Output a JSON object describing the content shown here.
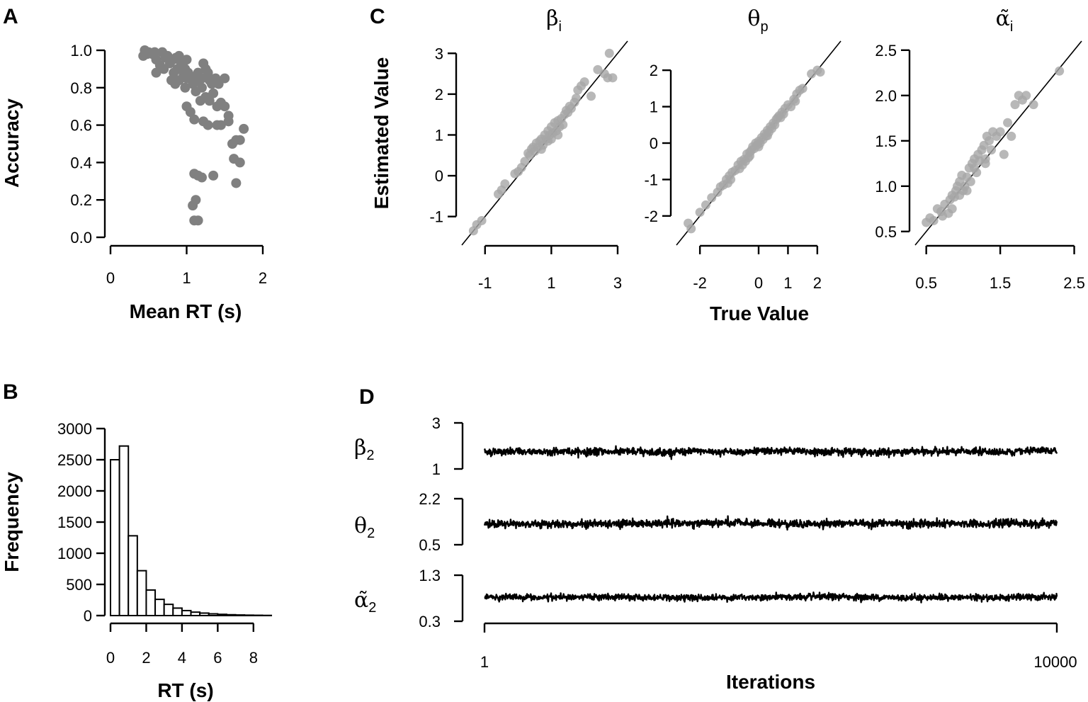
{
  "chart_data": [
    {
      "id": "A",
      "type": "scatter",
      "panel_label": "A",
      "xlabel": "Mean RT (s)",
      "ylabel": "Accuracy",
      "xlim": [
        0,
        2
      ],
      "ylim": [
        0,
        1
      ],
      "xticks": [
        "0",
        "1",
        "2"
      ],
      "yticks": [
        "0.0",
        "0.2",
        "0.4",
        "0.6",
        "0.8",
        "1.0"
      ],
      "point_color": "#808080",
      "points": [
        [
          0.45,
          1.0
        ],
        [
          0.48,
          0.98
        ],
        [
          0.5,
          0.99
        ],
        [
          0.43,
          0.97
        ],
        [
          0.55,
          0.98
        ],
        [
          0.6,
          0.95
        ],
        [
          0.68,
          0.99
        ],
        [
          0.72,
          0.96
        ],
        [
          0.75,
          0.97
        ],
        [
          0.78,
          0.93
        ],
        [
          0.82,
          0.95
        ],
        [
          0.86,
          0.96
        ],
        [
          0.9,
          0.97
        ],
        [
          0.92,
          0.94
        ],
        [
          0.95,
          0.92
        ],
        [
          0.98,
          0.9
        ],
        [
          0.96,
          0.87
        ],
        [
          0.88,
          0.9
        ],
        [
          0.83,
          0.88
        ],
        [
          0.8,
          0.84
        ],
        [
          0.85,
          0.82
        ],
        [
          0.9,
          0.84
        ],
        [
          1.0,
          0.85
        ],
        [
          1.02,
          0.88
        ],
        [
          1.05,
          0.85
        ],
        [
          1.08,
          0.82
        ],
        [
          1.1,
          0.83
        ],
        [
          1.12,
          0.86
        ],
        [
          1.15,
          0.88
        ],
        [
          1.17,
          0.84
        ],
        [
          1.2,
          0.85
        ],
        [
          1.22,
          0.93
        ],
        [
          1.25,
          0.9
        ],
        [
          1.28,
          0.88
        ],
        [
          1.3,
          0.84
        ],
        [
          1.33,
          0.82
        ],
        [
          1.38,
          0.85
        ],
        [
          1.42,
          0.82
        ],
        [
          1.5,
          0.85
        ],
        [
          1.2,
          0.8
        ],
        [
          1.25,
          0.75
        ],
        [
          1.3,
          0.73
        ],
        [
          1.35,
          0.77
        ],
        [
          1.4,
          0.7
        ],
        [
          1.45,
          0.72
        ],
        [
          1.5,
          0.7
        ],
        [
          1.55,
          0.65
        ],
        [
          1.18,
          0.73
        ],
        [
          1.12,
          0.78
        ],
        [
          0.98,
          0.8
        ],
        [
          1.0,
          0.7
        ],
        [
          1.05,
          0.67
        ],
        [
          1.1,
          0.63
        ],
        [
          1.22,
          0.62
        ],
        [
          1.28,
          0.6
        ],
        [
          1.4,
          0.6
        ],
        [
          1.45,
          0.6
        ],
        [
          1.55,
          0.62
        ],
        [
          1.6,
          0.5
        ],
        [
          1.65,
          0.52
        ],
        [
          1.7,
          0.52
        ],
        [
          1.75,
          0.58
        ],
        [
          1.62,
          0.42
        ],
        [
          1.7,
          0.4
        ],
        [
          1.65,
          0.29
        ],
        [
          1.1,
          0.34
        ],
        [
          1.15,
          0.33
        ],
        [
          1.2,
          0.32
        ],
        [
          1.35,
          0.33
        ],
        [
          1.08,
          0.17
        ],
        [
          1.12,
          0.2
        ],
        [
          1.1,
          0.09
        ],
        [
          1.15,
          0.09
        ],
        [
          0.6,
          0.88
        ],
        [
          0.65,
          0.92
        ],
        [
          0.7,
          0.9
        ],
        [
          0.58,
          0.99
        ],
        [
          1.0,
          0.95
        ]
      ]
    },
    {
      "id": "B",
      "type": "bar",
      "panel_label": "B",
      "xlabel": "RT (s)",
      "ylabel": "Frequency",
      "xlim": [
        0,
        8.8
      ],
      "ylim": [
        0,
        3000
      ],
      "xticks": [
        "0",
        "2",
        "4",
        "6",
        "8"
      ],
      "yticks": [
        "0",
        "500",
        "1000",
        "1500",
        "2000",
        "2500",
        "3000"
      ],
      "bin_width": 0.5,
      "bin_starts": [
        0,
        0.5,
        1,
        1.5,
        2,
        2.5,
        3,
        3.5,
        4,
        4.5,
        5,
        5.5,
        6,
        6.5,
        7,
        7.5,
        8,
        8.5
      ],
      "values": [
        2500,
        2720,
        1280,
        720,
        410,
        260,
        180,
        120,
        80,
        55,
        40,
        28,
        20,
        14,
        10,
        7,
        5,
        3
      ]
    },
    {
      "id": "C1",
      "type": "scatter",
      "panel_label": "C",
      "title": "β",
      "title_sub": "i",
      "ylabel": "Estimated Value",
      "xlim": [
        -1.7,
        3.3
      ],
      "ylim": [
        -1.7,
        3.3
      ],
      "xticks": [
        "-1",
        "1",
        "3"
      ],
      "yticks": [
        "-1",
        "0",
        "1",
        "2",
        "3"
      ],
      "identity_line": true,
      "point_color": "#a6a6a6",
      "points": [
        [
          -1.35,
          -1.35
        ],
        [
          -1.25,
          -1.2
        ],
        [
          -1.1,
          -1.1
        ],
        [
          -0.6,
          -0.45
        ],
        [
          -0.5,
          -0.35
        ],
        [
          -0.4,
          -0.2
        ],
        [
          -0.1,
          0.05
        ],
        [
          0.0,
          0.1
        ],
        [
          0.1,
          0.2
        ],
        [
          0.2,
          0.35
        ],
        [
          0.3,
          0.55
        ],
        [
          0.4,
          0.65
        ],
        [
          0.45,
          0.7
        ],
        [
          0.5,
          0.6
        ],
        [
          0.55,
          0.8
        ],
        [
          0.6,
          0.7
        ],
        [
          0.65,
          0.85
        ],
        [
          0.7,
          0.9
        ],
        [
          0.75,
          0.75
        ],
        [
          0.8,
          1.0
        ],
        [
          0.85,
          0.9
        ],
        [
          0.9,
          1.1
        ],
        [
          0.95,
          1.0
        ],
        [
          1.0,
          1.2
        ],
        [
          1.05,
          1.05
        ],
        [
          1.1,
          1.3
        ],
        [
          1.15,
          1.1
        ],
        [
          1.2,
          1.35
        ],
        [
          1.25,
          1.2
        ],
        [
          1.3,
          1.4
        ],
        [
          1.35,
          1.25
        ],
        [
          1.4,
          1.5
        ],
        [
          1.45,
          1.6
        ],
        [
          1.5,
          1.55
        ],
        [
          1.55,
          1.7
        ],
        [
          1.6,
          1.65
        ],
        [
          1.7,
          1.8
        ],
        [
          1.75,
          1.9
        ],
        [
          1.8,
          2.1
        ],
        [
          1.9,
          2.2
        ],
        [
          2.0,
          2.3
        ],
        [
          2.2,
          1.95
        ],
        [
          2.4,
          2.6
        ],
        [
          2.6,
          2.5
        ],
        [
          2.7,
          2.4
        ],
        [
          2.75,
          3.0
        ],
        [
          2.85,
          2.4
        ],
        [
          0.35,
          0.5
        ],
        [
          0.9,
          0.85
        ],
        [
          1.2,
          1.0
        ],
        [
          0.7,
          0.65
        ],
        [
          1.0,
          0.9
        ]
      ]
    },
    {
      "id": "C2",
      "type": "scatter",
      "title": "θ",
      "title_sub": "p",
      "xlabel": "True Value",
      "xlim": [
        -2.8,
        2.8
      ],
      "ylim": [
        -2.8,
        2.8
      ],
      "xticks": [
        "-2",
        "0",
        "1",
        "2"
      ],
      "yticks": [
        "-2",
        "-1",
        "0",
        "1",
        "2"
      ],
      "identity_line": true,
      "point_color": "#a6a6a6",
      "points": [
        [
          -2.4,
          -2.2
        ],
        [
          -2.3,
          -2.35
        ],
        [
          -2.0,
          -1.9
        ],
        [
          -1.8,
          -1.7
        ],
        [
          -1.6,
          -1.5
        ],
        [
          -1.4,
          -1.35
        ],
        [
          -1.3,
          -1.2
        ],
        [
          -1.2,
          -1.15
        ],
        [
          -1.1,
          -1.0
        ],
        [
          -1.0,
          -0.9
        ],
        [
          -0.95,
          -1.0
        ],
        [
          -0.9,
          -0.8
        ],
        [
          -0.8,
          -0.75
        ],
        [
          -0.7,
          -0.6
        ],
        [
          -0.65,
          -0.7
        ],
        [
          -0.6,
          -0.5
        ],
        [
          -0.5,
          -0.45
        ],
        [
          -0.45,
          -0.5
        ],
        [
          -0.4,
          -0.3
        ],
        [
          -0.35,
          -0.4
        ],
        [
          -0.3,
          -0.25
        ],
        [
          -0.25,
          -0.2
        ],
        [
          -0.2,
          -0.1
        ],
        [
          -0.15,
          -0.15
        ],
        [
          -0.1,
          0.0
        ],
        [
          -0.05,
          -0.05
        ],
        [
          0.0,
          0.05
        ],
        [
          0.05,
          0.0
        ],
        [
          0.1,
          0.15
        ],
        [
          0.15,
          0.1
        ],
        [
          0.2,
          0.25
        ],
        [
          0.25,
          0.2
        ],
        [
          0.3,
          0.35
        ],
        [
          0.35,
          0.3
        ],
        [
          0.4,
          0.45
        ],
        [
          0.45,
          0.4
        ],
        [
          0.5,
          0.55
        ],
        [
          0.55,
          0.5
        ],
        [
          0.6,
          0.65
        ],
        [
          0.65,
          0.7
        ],
        [
          0.7,
          0.75
        ],
        [
          0.8,
          0.85
        ],
        [
          0.85,
          0.8
        ],
        [
          0.9,
          0.95
        ],
        [
          1.0,
          1.05
        ],
        [
          1.1,
          1.0
        ],
        [
          1.2,
          1.2
        ],
        [
          1.3,
          1.35
        ],
        [
          1.4,
          1.45
        ],
        [
          1.5,
          1.5
        ],
        [
          1.8,
          1.9
        ],
        [
          2.0,
          2.0
        ],
        [
          2.1,
          1.95
        ],
        [
          -0.55,
          -0.6
        ],
        [
          0.75,
          0.7
        ],
        [
          1.25,
          1.15
        ],
        [
          -1.05,
          -1.1
        ],
        [
          0.0,
          -0.1
        ],
        [
          0.3,
          0.2
        ],
        [
          -0.3,
          -0.35
        ]
      ]
    },
    {
      "id": "C3",
      "type": "scatter",
      "title": "α̃",
      "title_sub": "i",
      "xlim": [
        0.35,
        2.6
      ],
      "ylim": [
        0.35,
        2.6
      ],
      "xticks": [
        "0.5",
        "1.5",
        "2.5"
      ],
      "yticks": [
        "0.5",
        "1.0",
        "1.5",
        "2.0",
        "2.5"
      ],
      "identity_line": true,
      "point_color": "#a6a6a6",
      "points": [
        [
          0.5,
          0.6
        ],
        [
          0.55,
          0.65
        ],
        [
          0.6,
          0.62
        ],
        [
          0.65,
          0.75
        ],
        [
          0.7,
          0.72
        ],
        [
          0.75,
          0.8
        ],
        [
          0.8,
          0.7
        ],
        [
          0.82,
          0.85
        ],
        [
          0.85,
          0.9
        ],
        [
          0.88,
          0.88
        ],
        [
          0.9,
          0.95
        ],
        [
          0.92,
          1.0
        ],
        [
          0.95,
          1.05
        ],
        [
          0.98,
          1.12
        ],
        [
          1.0,
          0.95
        ],
        [
          1.02,
          1.0
        ],
        [
          1.05,
          1.1
        ],
        [
          1.08,
          1.2
        ],
        [
          1.1,
          1.05
        ],
        [
          1.12,
          1.25
        ],
        [
          1.15,
          1.3
        ],
        [
          1.18,
          1.15
        ],
        [
          1.2,
          1.35
        ],
        [
          1.22,
          1.28
        ],
        [
          1.25,
          1.4
        ],
        [
          1.28,
          1.45
        ],
        [
          1.3,
          1.3
        ],
        [
          1.32,
          1.55
        ],
        [
          1.35,
          1.5
        ],
        [
          1.38,
          1.4
        ],
        [
          1.4,
          1.6
        ],
        [
          1.45,
          1.55
        ],
        [
          1.5,
          1.6
        ],
        [
          1.55,
          1.35
        ],
        [
          1.6,
          1.7
        ],
        [
          1.65,
          1.55
        ],
        [
          1.7,
          1.9
        ],
        [
          1.75,
          2.0
        ],
        [
          1.8,
          1.95
        ],
        [
          1.85,
          2.0
        ],
        [
          1.95,
          1.9
        ],
        [
          2.3,
          2.27
        ],
        [
          0.72,
          0.67
        ],
        [
          0.95,
          0.9
        ],
        [
          1.15,
          1.2
        ],
        [
          1.3,
          1.25
        ],
        [
          0.85,
          0.75
        ],
        [
          1.05,
          0.95
        ]
      ]
    },
    {
      "id": "D1",
      "type": "line",
      "panel_label": "D",
      "label": "β",
      "label_sub": "2",
      "ylim": [
        1,
        3
      ],
      "yticks": [
        "3",
        "1"
      ],
      "trace_mean": 1.75,
      "trace_sd": 0.14
    },
    {
      "id": "D2",
      "type": "line",
      "label": "θ",
      "label_sub": "2",
      "ylim": [
        0.5,
        2.2
      ],
      "yticks": [
        "2.2",
        "0.5"
      ],
      "trace_mean": 1.28,
      "trace_sd": 0.13
    },
    {
      "id": "D3",
      "type": "line",
      "label": "α̃",
      "label_sub": "2",
      "ylim": [
        0.3,
        1.3
      ],
      "yticks": [
        "1.3",
        "0.3"
      ],
      "trace_mean": 0.82,
      "trace_sd": 0.06
    },
    {
      "id": "Daxis",
      "type": "line",
      "xlabel": "Iterations",
      "xlim": [
        1,
        10000
      ],
      "xticks": [
        "1",
        "10000"
      ]
    }
  ]
}
